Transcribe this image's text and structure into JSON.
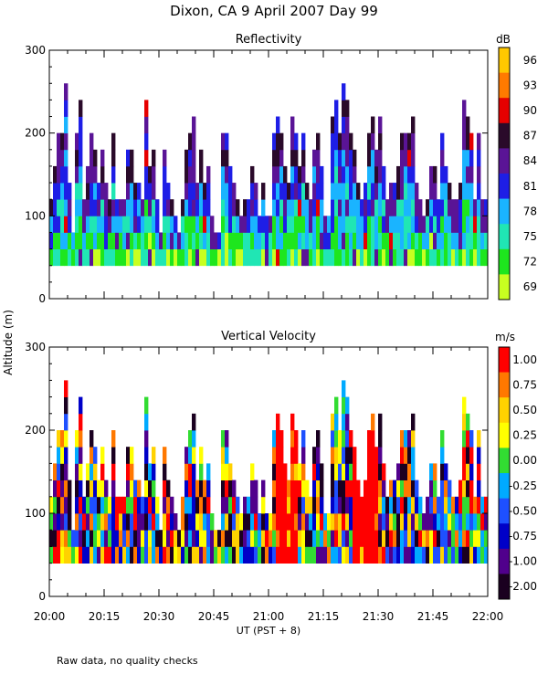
{
  "page": {
    "title": "Dixon, CA   9 April 2007   Day  99",
    "ylabel": "Altitude  (m)",
    "xlabel": "UT  (PST + 8)",
    "footnote": "Raw data, no quality checks"
  },
  "chart_data": [
    {
      "type": "heatmap",
      "title": "Reflectivity",
      "xlabel": "UT  (PST + 8)",
      "ylabel": "Altitude  (m)",
      "x_ticks": [
        "20:00",
        "20:15",
        "20:30",
        "20:45",
        "21:00",
        "21:15",
        "21:30",
        "21:45",
        "22:00"
      ],
      "x_range_minutes": [
        0,
        120
      ],
      "y_ticks": [
        0,
        100,
        200,
        300
      ],
      "ylim": [
        0,
        300
      ],
      "colorbar": {
        "unit": "dB",
        "labels": [
          "96",
          "93",
          "90",
          "87",
          "84",
          "81",
          "78",
          "75",
          "72",
          "69"
        ],
        "colors": [
          "#ffc800",
          "#ff7a00",
          "#e60000",
          "#2a0a2a",
          "#5a1496",
          "#1e1ee6",
          "#1ab4ff",
          "#20e6b4",
          "#1ee61e",
          "#c8ff20"
        ]
      },
      "data_floor_m": 40,
      "echo_top_profile_m": [
        120,
        150,
        200,
        190,
        260,
        130,
        80,
        200,
        240,
        110,
        150,
        190,
        180,
        130,
        170,
        130,
        110,
        200,
        120,
        110,
        120,
        170,
        170,
        130,
        140,
        120,
        230,
        150,
        180,
        110,
        80,
        180,
        140,
        110,
        100,
        80,
        120,
        170,
        190,
        220,
        130,
        180,
        130,
        160,
        100,
        80,
        80,
        200,
        190,
        150,
        140,
        110,
        100,
        110,
        120,
        150,
        140,
        100,
        130,
        90,
        100,
        200,
        210,
        200,
        150,
        140,
        210,
        190,
        160,
        200,
        140,
        110,
        180,
        190,
        150,
        100,
        100,
        210,
        240,
        200,
        260,
        240,
        200,
        180,
        130,
        120,
        130,
        200,
        220,
        180,
        210,
        150,
        120,
        140,
        140,
        160,
        190,
        190,
        200,
        220,
        130,
        110,
        100,
        120,
        160,
        150,
        120,
        200,
        160,
        140,
        120,
        110,
        130,
        240,
        220,
        200,
        120,
        190,
        110,
        110
      ]
    },
    {
      "type": "heatmap",
      "title": "Vertical Velocity",
      "xlabel": "UT  (PST + 8)",
      "ylabel": "Altitude  (m)",
      "x_ticks": [
        "20:00",
        "20:15",
        "20:30",
        "20:45",
        "21:00",
        "21:15",
        "21:30",
        "21:45",
        "22:00"
      ],
      "x_range_minutes": [
        0,
        120
      ],
      "y_ticks": [
        0,
        100,
        200,
        300
      ],
      "ylim": [
        0,
        300
      ],
      "colorbar": {
        "unit": "m/s",
        "labels": [
          "1.00",
          "0.75",
          "0.50",
          "0.25",
          "0.00",
          "-0.25",
          "-0.50",
          "-0.75",
          "-1.00",
          "-2.00"
        ],
        "colors": [
          "#ff0000",
          "#ff7800",
          "#ffd200",
          "#ffff00",
          "#32dc32",
          "#00aaff",
          "#1e50ff",
          "#0000c8",
          "#50008c",
          "#1a0020"
        ]
      },
      "data_floor_m": 40,
      "strong_updraft_intervals_min": [
        [
          62,
          67
        ],
        [
          83,
          89
        ]
      ]
    }
  ]
}
